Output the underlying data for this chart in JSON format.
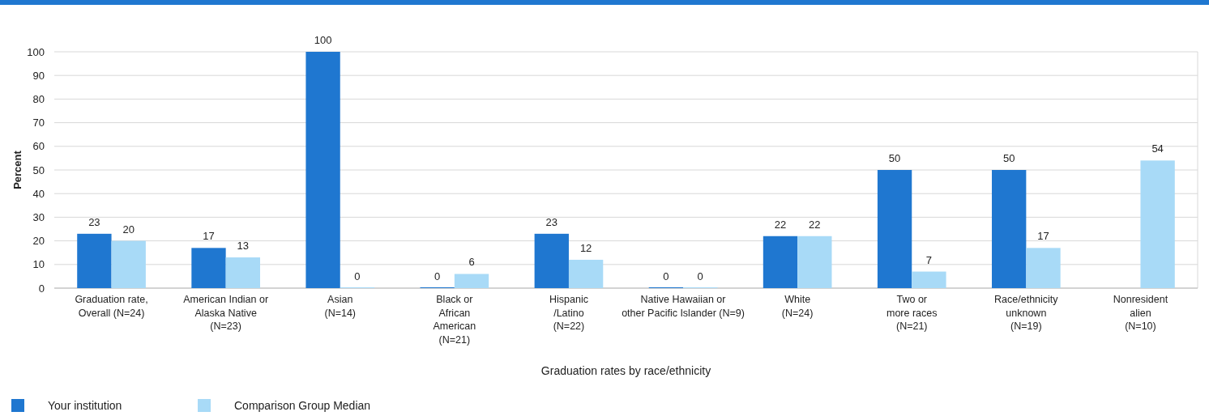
{
  "chart_data": {
    "type": "bar",
    "xlabel": "Graduation rates by race/ethnicity",
    "ylabel": "Percent",
    "categories": [
      "Graduation rate,\nOverall (N=24)",
      "American Indian or\nAlaska Native\n(N=23)",
      "Asian\n(N=14)",
      "Black or\nAfrican\nAmerican\n(N=21)",
      "Hispanic\n/Latino\n(N=22)",
      "Native Hawaiian or\nother Pacific Islander (N=9)",
      "White\n(N=24)",
      "Two or\nmore races\n(N=21)",
      "Race/ethnicity\nunknown\n(N=19)",
      "Nonresident\nalien\n(N=10)"
    ],
    "series": [
      {
        "name": "Your institution",
        "color": "#1f77d0",
        "values": [
          23,
          17,
          100,
          0,
          23,
          0,
          22,
          50,
          50,
          null
        ]
      },
      {
        "name": "Comparison Group Median",
        "color": "#a8daf7",
        "values": [
          20,
          13,
          0,
          6,
          12,
          0,
          22,
          7,
          17,
          54
        ]
      }
    ],
    "ylim": [
      0,
      100
    ],
    "yticks": [
      0,
      10,
      20,
      30,
      40,
      50,
      60,
      70,
      80,
      90,
      100
    ],
    "grid": "y",
    "data_labels": true,
    "legend": "bottom left"
  }
}
